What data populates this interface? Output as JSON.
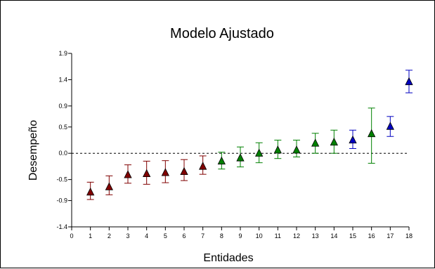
{
  "chart_data": {
    "type": "scatter",
    "title": "Modelo Ajustado",
    "xlabel": "Entidades",
    "ylabel": "Desempeño",
    "xlim": [
      0,
      18
    ],
    "ylim": [
      -1.4,
      1.9
    ],
    "x_ticks": [
      "0",
      "1",
      "2",
      "3",
      "4",
      "5",
      "6",
      "7",
      "8",
      "9",
      "10",
      "11",
      "12",
      "13",
      "14",
      "15",
      "16",
      "17",
      "18"
    ],
    "y_ticks": [
      {
        "value": 1.9,
        "label": "1.9"
      },
      {
        "value": 1.4,
        "label": "1.4"
      },
      {
        "value": 0.9,
        "label": "0.9"
      },
      {
        "value": 0.5,
        "label": "0.5"
      },
      {
        "value": 0.0,
        "label": "0.0"
      },
      {
        "value": -0.5,
        "label": "-0.5"
      },
      {
        "value": -0.9,
        "label": "-0.9"
      },
      {
        "value": -1.4,
        "label": "-1.4"
      }
    ],
    "reference_line": {
      "y": 0.0,
      "style": "dashed"
    },
    "grid": false,
    "legend": "none",
    "points": [
      {
        "x": 1,
        "y": -0.73,
        "low": -0.88,
        "high": -0.55,
        "color": "#800000"
      },
      {
        "x": 2,
        "y": -0.63,
        "low": -0.79,
        "high": -0.43,
        "color": "#800000"
      },
      {
        "x": 3,
        "y": -0.4,
        "low": -0.57,
        "high": -0.22,
        "color": "#800000"
      },
      {
        "x": 4,
        "y": -0.38,
        "low": -0.59,
        "high": -0.15,
        "color": "#800000"
      },
      {
        "x": 5,
        "y": -0.36,
        "low": -0.56,
        "high": -0.14,
        "color": "#800000"
      },
      {
        "x": 6,
        "y": -0.34,
        "low": -0.52,
        "high": -0.12,
        "color": "#800000"
      },
      {
        "x": 7,
        "y": -0.24,
        "low": -0.4,
        "high": -0.05,
        "color": "#800000"
      },
      {
        "x": 8,
        "y": -0.14,
        "low": -0.3,
        "high": 0.02,
        "color": "#008000"
      },
      {
        "x": 9,
        "y": -0.08,
        "low": -0.26,
        "high": 0.12,
        "color": "#008000"
      },
      {
        "x": 10,
        "y": 0.01,
        "low": -0.18,
        "high": 0.2,
        "color": "#008000"
      },
      {
        "x": 11,
        "y": 0.07,
        "low": -0.1,
        "high": 0.25,
        "color": "#008000"
      },
      {
        "x": 12,
        "y": 0.07,
        "low": -0.07,
        "high": 0.25,
        "color": "#008000"
      },
      {
        "x": 13,
        "y": 0.2,
        "low": 0.0,
        "high": 0.38,
        "color": "#008000"
      },
      {
        "x": 14,
        "y": 0.22,
        "low": 0.0,
        "high": 0.44,
        "color": "#008000"
      },
      {
        "x": 15,
        "y": 0.26,
        "low": 0.09,
        "high": 0.44,
        "color": "#0000C0"
      },
      {
        "x": 16,
        "y": 0.38,
        "low": -0.19,
        "high": 0.86,
        "color": "#008000"
      },
      {
        "x": 17,
        "y": 0.52,
        "low": 0.32,
        "high": 0.7,
        "color": "#0000C0"
      },
      {
        "x": 18,
        "y": 1.37,
        "low": 1.15,
        "high": 1.58,
        "color": "#0000C0"
      }
    ]
  }
}
